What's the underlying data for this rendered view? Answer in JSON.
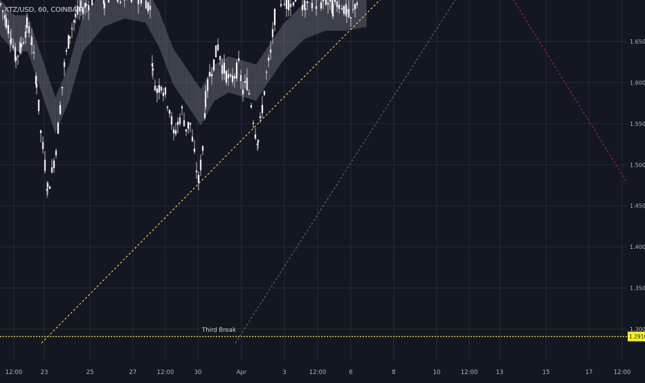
{
  "symbol": "XTZ/USD, 60, COINBASE",
  "colors": {
    "background": "#131722",
    "grid": "#363a45",
    "candle": "#e6e6e6",
    "band": "#9598a1",
    "trend_yellow": "#f0e442",
    "trend_gray": "#6a6d78",
    "trend_red": "#b22842",
    "level_line": "#e6e135",
    "price_label_bg": "#f5f028",
    "axis_text": "#b2b5be"
  },
  "annotation": "Third Break",
  "chart_data": {
    "type": "candlestick",
    "title": "XTZ/USD, 60, COINBASE",
    "y_ticks": [
      "1.6500",
      "1.6000",
      "1.5500",
      "1.5000",
      "1.4500",
      "1.4000",
      "1.3500",
      "1.3000"
    ],
    "x_ticks": [
      "12:00",
      "23",
      "25",
      "27",
      "12:00",
      "30",
      "Apr",
      "3",
      "12:00",
      "6",
      "8",
      "10",
      "12:00",
      "13",
      "15",
      "17",
      "12:00"
    ],
    "ylim": [
      1.28,
      1.71
    ],
    "current_price_label": "1.2910",
    "horizontal_level": 1.291,
    "grid": true,
    "price_series": [
      {
        "x": 0,
        "y": 1.695
      },
      {
        "x": 8,
        "y": 1.675
      },
      {
        "x": 15,
        "y": 1.655
      },
      {
        "x": 22,
        "y": 1.63
      },
      {
        "x": 30,
        "y": 1.645
      },
      {
        "x": 38,
        "y": 1.67
      },
      {
        "x": 45,
        "y": 1.65
      },
      {
        "x": 52,
        "y": 1.6
      },
      {
        "x": 58,
        "y": 1.54
      },
      {
        "x": 64,
        "y": 1.5
      },
      {
        "x": 68,
        "y": 1.47
      },
      {
        "x": 74,
        "y": 1.49
      },
      {
        "x": 80,
        "y": 1.52
      },
      {
        "x": 86,
        "y": 1.57
      },
      {
        "x": 92,
        "y": 1.62
      },
      {
        "x": 100,
        "y": 1.66
      },
      {
        "x": 108,
        "y": 1.68
      },
      {
        "x": 116,
        "y": 1.69
      },
      {
        "x": 124,
        "y": 1.695
      },
      {
        "x": 132,
        "y": 1.7
      },
      {
        "x": 140,
        "y": 1.705
      },
      {
        "x": 150,
        "y": 1.7
      },
      {
        "x": 160,
        "y": 1.705
      },
      {
        "x": 170,
        "y": 1.7
      },
      {
        "x": 180,
        "y": 1.705
      },
      {
        "x": 190,
        "y": 1.7
      },
      {
        "x": 200,
        "y": 1.705
      },
      {
        "x": 210,
        "y": 1.7
      },
      {
        "x": 216,
        "y": 1.69
      },
      {
        "x": 220,
        "y": 1.61
      },
      {
        "x": 226,
        "y": 1.59
      },
      {
        "x": 232,
        "y": 1.6
      },
      {
        "x": 238,
        "y": 1.585
      },
      {
        "x": 244,
        "y": 1.57
      },
      {
        "x": 250,
        "y": 1.535
      },
      {
        "x": 256,
        "y": 1.55
      },
      {
        "x": 262,
        "y": 1.565
      },
      {
        "x": 268,
        "y": 1.545
      },
      {
        "x": 274,
        "y": 1.55
      },
      {
        "x": 280,
        "y": 1.51
      },
      {
        "x": 286,
        "y": 1.48
      },
      {
        "x": 292,
        "y": 1.52
      },
      {
        "x": 296,
        "y": 1.58
      },
      {
        "x": 302,
        "y": 1.61
      },
      {
        "x": 308,
        "y": 1.625
      },
      {
        "x": 314,
        "y": 1.645
      },
      {
        "x": 320,
        "y": 1.62
      },
      {
        "x": 326,
        "y": 1.61
      },
      {
        "x": 332,
        "y": 1.6
      },
      {
        "x": 338,
        "y": 1.61
      },
      {
        "x": 344,
        "y": 1.62
      },
      {
        "x": 350,
        "y": 1.59
      },
      {
        "x": 356,
        "y": 1.6
      },
      {
        "x": 362,
        "y": 1.575
      },
      {
        "x": 368,
        "y": 1.54
      },
      {
        "x": 372,
        "y": 1.53
      },
      {
        "x": 378,
        "y": 1.57
      },
      {
        "x": 384,
        "y": 1.61
      },
      {
        "x": 390,
        "y": 1.635
      },
      {
        "x": 396,
        "y": 1.68
      },
      {
        "x": 402,
        "y": 1.705
      },
      {
        "x": 410,
        "y": 1.695
      },
      {
        "x": 420,
        "y": 1.7
      },
      {
        "x": 430,
        "y": 1.705
      },
      {
        "x": 440,
        "y": 1.69
      },
      {
        "x": 450,
        "y": 1.7
      },
      {
        "x": 460,
        "y": 1.695
      },
      {
        "x": 470,
        "y": 1.7
      },
      {
        "x": 480,
        "y": 1.69
      },
      {
        "x": 490,
        "y": 1.7
      },
      {
        "x": 500,
        "y": 1.685
      },
      {
        "x": 506,
        "y": 1.675
      },
      {
        "x": 512,
        "y": 1.695
      },
      {
        "x": 518,
        "y": 1.705
      }
    ],
    "band_center": [
      {
        "x": 0,
        "y": 1.68
      },
      {
        "x": 20,
        "y": 1.66
      },
      {
        "x": 40,
        "y": 1.66
      },
      {
        "x": 60,
        "y": 1.61
      },
      {
        "x": 80,
        "y": 1.56
      },
      {
        "x": 100,
        "y": 1.6
      },
      {
        "x": 120,
        "y": 1.66
      },
      {
        "x": 150,
        "y": 1.69
      },
      {
        "x": 180,
        "y": 1.7
      },
      {
        "x": 210,
        "y": 1.695
      },
      {
        "x": 230,
        "y": 1.665
      },
      {
        "x": 250,
        "y": 1.62
      },
      {
        "x": 270,
        "y": 1.595
      },
      {
        "x": 290,
        "y": 1.57
      },
      {
        "x": 310,
        "y": 1.6
      },
      {
        "x": 330,
        "y": 1.61
      },
      {
        "x": 350,
        "y": 1.605
      },
      {
        "x": 370,
        "y": 1.6
      },
      {
        "x": 390,
        "y": 1.625
      },
      {
        "x": 410,
        "y": 1.65
      },
      {
        "x": 440,
        "y": 1.675
      },
      {
        "x": 470,
        "y": 1.685
      },
      {
        "x": 500,
        "y": 1.685
      },
      {
        "x": 530,
        "y": 1.69
      }
    ],
    "band_half_width": 0.022,
    "trendlines": [
      {
        "name": "yellow",
        "x1": 60,
        "y1": 1.283,
        "x2": 560,
        "y2": 1.71
      },
      {
        "name": "gray",
        "x1": 340,
        "y1": 1.283,
        "x2": 665,
        "y2": 1.71
      },
      {
        "name": "red",
        "x1": 735,
        "y1": 1.71,
        "x2": 905,
        "y2": 1.48
      }
    ]
  }
}
